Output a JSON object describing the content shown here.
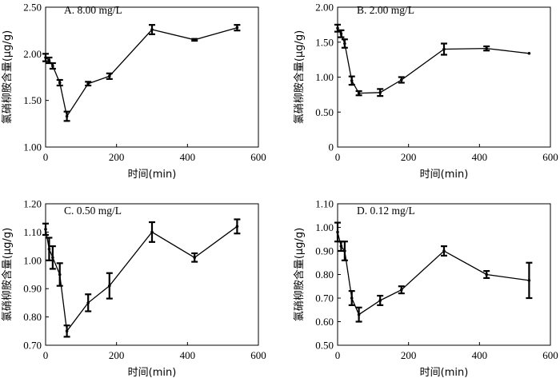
{
  "chart_data": [
    {
      "type": "line",
      "title": "A. 8.00 mg/L",
      "xlabel": "时间(min)",
      "ylabel": "氯硝柳胺含量(μg/g)",
      "xlim": [
        0,
        600
      ],
      "ylim": [
        1.0,
        2.5
      ],
      "xticks": [
        "0",
        "200",
        "400",
        "600"
      ],
      "xtick_values": [
        0,
        200,
        400,
        600
      ],
      "yticks": [
        "1.00",
        "1.50",
        "2.00",
        "2.50"
      ],
      "ytick_values": [
        1.0,
        1.5,
        2.0,
        2.5
      ],
      "x": [
        0,
        10,
        20,
        40,
        60,
        120,
        180,
        300,
        420,
        540
      ],
      "y": [
        1.96,
        1.93,
        1.87,
        1.69,
        1.33,
        1.68,
        1.76,
        2.26,
        2.15,
        2.28
      ],
      "err": [
        0.04,
        0.03,
        0.03,
        0.03,
        0.05,
        0.02,
        0.03,
        0.05,
        0.01,
        0.03
      ]
    },
    {
      "type": "line",
      "title": "B. 2.00 mg/L",
      "xlabel": "时间(min)",
      "ylabel": "氯硝柳胺含量(μg/g)",
      "xlim": [
        0,
        600
      ],
      "ylim": [
        0.0,
        2.0
      ],
      "xticks": [
        "0",
        "200",
        "400",
        "600"
      ],
      "xtick_values": [
        0,
        200,
        400,
        600
      ],
      "yticks": [
        "0",
        "0.50",
        "1.00",
        "1.50",
        "2.00"
      ],
      "ytick_values": [
        0,
        0.5,
        1.0,
        1.5,
        2.0
      ],
      "x": [
        0,
        10,
        20,
        40,
        60,
        120,
        180,
        300,
        420,
        540
      ],
      "y": [
        1.7,
        1.62,
        1.48,
        0.95,
        0.77,
        0.78,
        0.96,
        1.4,
        1.41,
        1.34
      ],
      "err": [
        0.05,
        0.05,
        0.06,
        0.06,
        0.03,
        0.05,
        0.04,
        0.08,
        0.03,
        0.0
      ]
    },
    {
      "type": "line",
      "title": "C. 0.50 mg/L",
      "xlabel": "时间(min)",
      "ylabel": "氯硝柳胺含量(μg/g)",
      "xlim": [
        0,
        600
      ],
      "ylim": [
        0.7,
        1.2
      ],
      "xticks": [
        "0",
        "200",
        "400",
        "600"
      ],
      "xtick_values": [
        0,
        200,
        400,
        600
      ],
      "yticks": [
        "0.70",
        "0.80",
        "0.90",
        "1.00",
        "1.10",
        "1.20"
      ],
      "ytick_values": [
        0.7,
        0.8,
        0.9,
        1.0,
        1.1,
        1.2
      ],
      "x": [
        0,
        10,
        20,
        40,
        60,
        120,
        180,
        300,
        420,
        540
      ],
      "y": [
        1.11,
        1.04,
        1.01,
        0.95,
        0.75,
        0.85,
        0.91,
        1.1,
        1.01,
        1.12
      ],
      "err": [
        0.02,
        0.04,
        0.04,
        0.04,
        0.02,
        0.03,
        0.045,
        0.035,
        0.015,
        0.025
      ]
    },
    {
      "type": "line",
      "title": "D. 0.12 mg/L",
      "xlabel": "时间(min)",
      "ylabel": "氯硝柳胺含量(μg/g)",
      "xlim": [
        0,
        600
      ],
      "ylim": [
        0.5,
        1.1
      ],
      "xticks": [
        "0",
        "200",
        "400",
        "600"
      ],
      "xtick_values": [
        0,
        200,
        400,
        600
      ],
      "yticks": [
        "0.50",
        "0.60",
        "0.70",
        "0.80",
        "0.90",
        "1.00",
        "1.10"
      ],
      "ytick_values": [
        0.5,
        0.6,
        0.7,
        0.8,
        0.9,
        1.0,
        1.1
      ],
      "x": [
        0,
        10,
        20,
        40,
        60,
        120,
        180,
        300,
        420,
        540
      ],
      "y": [
        0.98,
        0.92,
        0.9,
        0.7,
        0.63,
        0.69,
        0.735,
        0.9,
        0.8,
        0.775
      ],
      "err": [
        0.04,
        0.02,
        0.04,
        0.03,
        0.03,
        0.02,
        0.015,
        0.02,
        0.015,
        0.075
      ]
    }
  ]
}
